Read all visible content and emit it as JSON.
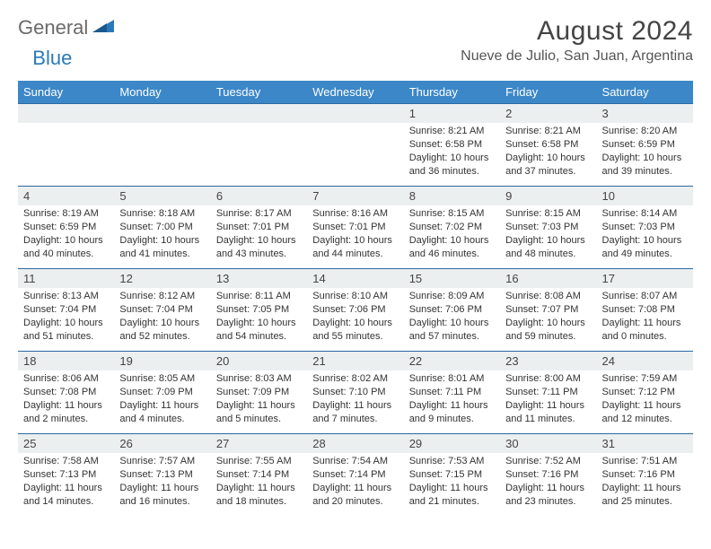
{
  "logo": {
    "general": "General",
    "blue": "Blue"
  },
  "title": "August 2024",
  "location": "Nueve de Julio, San Juan, Argentina",
  "colors": {
    "header_bg": "#3c87c7",
    "header_text": "#ffffff",
    "daynum_bg": "#eceff0",
    "daynum_border": "#2a6aa3",
    "text": "#333333",
    "logo_gray": "#6a6a6a",
    "logo_blue": "#2a7ab9"
  },
  "weekdays": [
    "Sunday",
    "Monday",
    "Tuesday",
    "Wednesday",
    "Thursday",
    "Friday",
    "Saturday"
  ],
  "grid": [
    [
      null,
      null,
      null,
      null,
      {
        "n": "1",
        "sr": "8:21 AM",
        "ss": "6:58 PM",
        "dl": "10 hours and 36 minutes."
      },
      {
        "n": "2",
        "sr": "8:21 AM",
        "ss": "6:58 PM",
        "dl": "10 hours and 37 minutes."
      },
      {
        "n": "3",
        "sr": "8:20 AM",
        "ss": "6:59 PM",
        "dl": "10 hours and 39 minutes."
      }
    ],
    [
      {
        "n": "4",
        "sr": "8:19 AM",
        "ss": "6:59 PM",
        "dl": "10 hours and 40 minutes."
      },
      {
        "n": "5",
        "sr": "8:18 AM",
        "ss": "7:00 PM",
        "dl": "10 hours and 41 minutes."
      },
      {
        "n": "6",
        "sr": "8:17 AM",
        "ss": "7:01 PM",
        "dl": "10 hours and 43 minutes."
      },
      {
        "n": "7",
        "sr": "8:16 AM",
        "ss": "7:01 PM",
        "dl": "10 hours and 44 minutes."
      },
      {
        "n": "8",
        "sr": "8:15 AM",
        "ss": "7:02 PM",
        "dl": "10 hours and 46 minutes."
      },
      {
        "n": "9",
        "sr": "8:15 AM",
        "ss": "7:03 PM",
        "dl": "10 hours and 48 minutes."
      },
      {
        "n": "10",
        "sr": "8:14 AM",
        "ss": "7:03 PM",
        "dl": "10 hours and 49 minutes."
      }
    ],
    [
      {
        "n": "11",
        "sr": "8:13 AM",
        "ss": "7:04 PM",
        "dl": "10 hours and 51 minutes."
      },
      {
        "n": "12",
        "sr": "8:12 AM",
        "ss": "7:04 PM",
        "dl": "10 hours and 52 minutes."
      },
      {
        "n": "13",
        "sr": "8:11 AM",
        "ss": "7:05 PM",
        "dl": "10 hours and 54 minutes."
      },
      {
        "n": "14",
        "sr": "8:10 AM",
        "ss": "7:06 PM",
        "dl": "10 hours and 55 minutes."
      },
      {
        "n": "15",
        "sr": "8:09 AM",
        "ss": "7:06 PM",
        "dl": "10 hours and 57 minutes."
      },
      {
        "n": "16",
        "sr": "8:08 AM",
        "ss": "7:07 PM",
        "dl": "10 hours and 59 minutes."
      },
      {
        "n": "17",
        "sr": "8:07 AM",
        "ss": "7:08 PM",
        "dl": "11 hours and 0 minutes."
      }
    ],
    [
      {
        "n": "18",
        "sr": "8:06 AM",
        "ss": "7:08 PM",
        "dl": "11 hours and 2 minutes."
      },
      {
        "n": "19",
        "sr": "8:05 AM",
        "ss": "7:09 PM",
        "dl": "11 hours and 4 minutes."
      },
      {
        "n": "20",
        "sr": "8:03 AM",
        "ss": "7:09 PM",
        "dl": "11 hours and 5 minutes."
      },
      {
        "n": "21",
        "sr": "8:02 AM",
        "ss": "7:10 PM",
        "dl": "11 hours and 7 minutes."
      },
      {
        "n": "22",
        "sr": "8:01 AM",
        "ss": "7:11 PM",
        "dl": "11 hours and 9 minutes."
      },
      {
        "n": "23",
        "sr": "8:00 AM",
        "ss": "7:11 PM",
        "dl": "11 hours and 11 minutes."
      },
      {
        "n": "24",
        "sr": "7:59 AM",
        "ss": "7:12 PM",
        "dl": "11 hours and 12 minutes."
      }
    ],
    [
      {
        "n": "25",
        "sr": "7:58 AM",
        "ss": "7:13 PM",
        "dl": "11 hours and 14 minutes."
      },
      {
        "n": "26",
        "sr": "7:57 AM",
        "ss": "7:13 PM",
        "dl": "11 hours and 16 minutes."
      },
      {
        "n": "27",
        "sr": "7:55 AM",
        "ss": "7:14 PM",
        "dl": "11 hours and 18 minutes."
      },
      {
        "n": "28",
        "sr": "7:54 AM",
        "ss": "7:14 PM",
        "dl": "11 hours and 20 minutes."
      },
      {
        "n": "29",
        "sr": "7:53 AM",
        "ss": "7:15 PM",
        "dl": "11 hours and 21 minutes."
      },
      {
        "n": "30",
        "sr": "7:52 AM",
        "ss": "7:16 PM",
        "dl": "11 hours and 23 minutes."
      },
      {
        "n": "31",
        "sr": "7:51 AM",
        "ss": "7:16 PM",
        "dl": "11 hours and 25 minutes."
      }
    ]
  ],
  "labels": {
    "sunrise": "Sunrise: ",
    "sunset": "Sunset: ",
    "daylight": "Daylight: "
  }
}
